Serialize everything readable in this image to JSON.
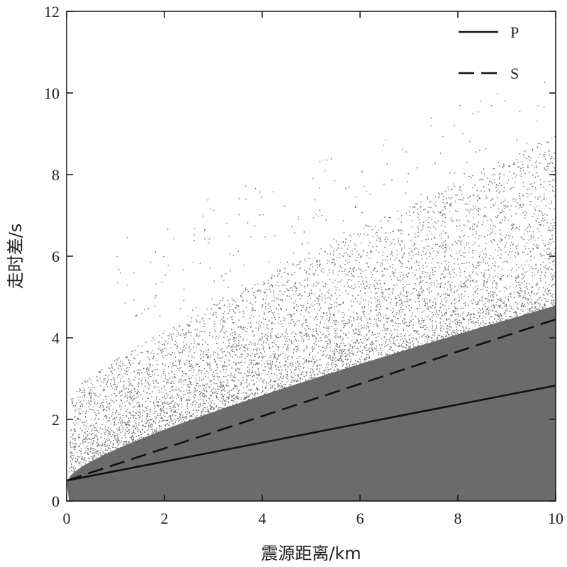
{
  "chart_data": {
    "type": "scatter",
    "xlabel": "震源距离/km",
    "ylabel": "走时差/s",
    "xlim": [
      0,
      10
    ],
    "ylim": [
      0,
      12
    ],
    "x_ticks": [
      "0",
      "2",
      "4",
      "6",
      "8",
      "10"
    ],
    "y_ticks": [
      "0",
      "2",
      "4",
      "6",
      "8",
      "10",
      "12"
    ],
    "grid": false,
    "legend_position": "top-right",
    "scatter_color": "#6b6b6b",
    "series": [
      {
        "name": "P",
        "style": "solid",
        "color": "#111111",
        "x": [
          0,
          10
        ],
        "y": [
          0.5,
          2.83
        ]
      },
      {
        "name": "S",
        "style": "dashed",
        "color": "#111111",
        "x": [
          0,
          10
        ],
        "y": [
          0.5,
          4.45
        ]
      }
    ]
  }
}
